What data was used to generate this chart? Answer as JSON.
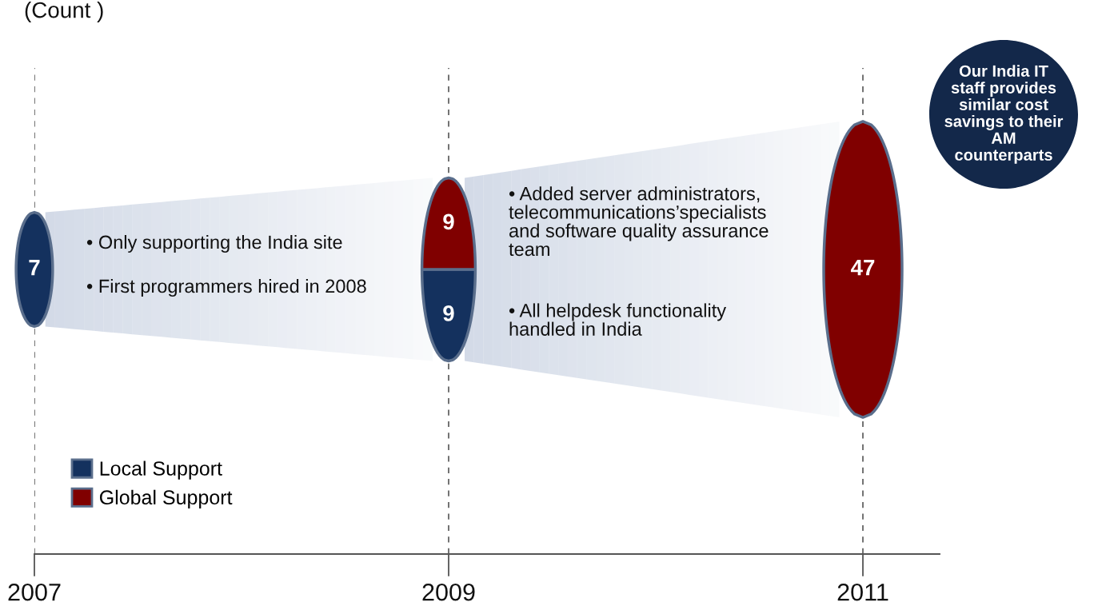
{
  "chart_data": {
    "type": "other",
    "ylabel": "(Count )",
    "categories": [
      "2007",
      "2009",
      "2011"
    ],
    "series": [
      {
        "name": "Local Support",
        "color": "#14315e",
        "values": [
          7,
          9,
          null
        ]
      },
      {
        "name": "Global Support",
        "color": "#800000",
        "values": [
          null,
          9,
          47
        ]
      }
    ],
    "data_labels": true,
    "legend": "bottom left",
    "annotations": [
      "• Only supporting the India site",
      "• First programmers hired in 2008",
      "• Added server administrators,\ntelecommunications’specialists\nand software quality assurance\nteam",
      "• All helpdesk functionality\nhandled in India",
      "Our India IT\nstaff provides\nsimilar cost\nsavings to their\nAM\ncounterparts"
    ]
  }
}
